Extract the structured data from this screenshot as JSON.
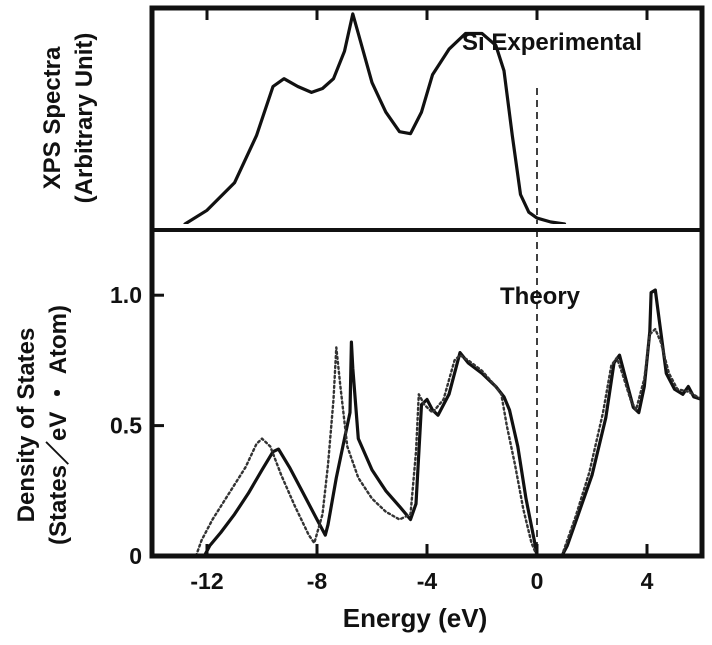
{
  "chart_data": [
    {
      "type": "line",
      "panel": "top",
      "ylabel_lines": [
        "XPS Spectra",
        "(Arbitrary Unit)"
      ],
      "annotation": "Si Experimental",
      "xlim": [
        -14,
        6
      ],
      "ylim": [
        0,
        1.1
      ],
      "y_ticks_shown": false,
      "reference_line": {
        "x": 0,
        "style": "dashed"
      },
      "series": [
        {
          "style": "solid",
          "points": [
            [
              -12.8,
              0.0
            ],
            [
              -12.0,
              0.07
            ],
            [
              -11.0,
              0.21
            ],
            [
              -10.2,
              0.45
            ],
            [
              -9.6,
              0.7
            ],
            [
              -9.2,
              0.74
            ],
            [
              -8.7,
              0.7
            ],
            [
              -8.2,
              0.67
            ],
            [
              -7.8,
              0.69
            ],
            [
              -7.4,
              0.74
            ],
            [
              -7.0,
              0.88
            ],
            [
              -6.7,
              1.07
            ],
            [
              -6.5,
              0.97
            ],
            [
              -6.0,
              0.72
            ],
            [
              -5.5,
              0.57
            ],
            [
              -5.0,
              0.47
            ],
            [
              -4.6,
              0.46
            ],
            [
              -4.2,
              0.57
            ],
            [
              -3.8,
              0.76
            ],
            [
              -3.2,
              0.89
            ],
            [
              -2.6,
              0.97
            ],
            [
              -2.0,
              0.97
            ],
            [
              -1.5,
              0.91
            ],
            [
              -1.2,
              0.78
            ],
            [
              -0.9,
              0.45
            ],
            [
              -0.6,
              0.15
            ],
            [
              -0.3,
              0.06
            ],
            [
              0.0,
              0.03
            ],
            [
              0.5,
              0.01
            ],
            [
              1.0,
              0.0
            ]
          ]
        }
      ]
    },
    {
      "type": "line",
      "panel": "bottom",
      "xlabel": "Energy (eV)",
      "ylabel_lines": [
        "Density of States",
        "(States／eV ・ Atom)"
      ],
      "annotation": "Theory",
      "xlim": [
        -14,
        6
      ],
      "ylim": [
        0,
        1.25
      ],
      "x_ticks": [
        -12,
        -8,
        -4,
        0,
        4
      ],
      "x_tick_labels": [
        "-12",
        "-8",
        "-4",
        "0",
        "4"
      ],
      "y_ticks": [
        0,
        0.5,
        1.0
      ],
      "y_tick_labels": [
        "0",
        "0.5",
        "1.0"
      ],
      "reference_line": {
        "x": 0,
        "style": "dashed"
      },
      "series": [
        {
          "style": "solid",
          "points": [
            [
              -12.1,
              0.0
            ],
            [
              -11.9,
              0.04
            ],
            [
              -11.5,
              0.09
            ],
            [
              -11.0,
              0.16
            ],
            [
              -10.5,
              0.24
            ],
            [
              -10.0,
              0.33
            ],
            [
              -9.6,
              0.4
            ],
            [
              -9.4,
              0.41
            ],
            [
              -9.0,
              0.34
            ],
            [
              -8.5,
              0.24
            ],
            [
              -8.0,
              0.14
            ],
            [
              -7.7,
              0.08
            ],
            [
              -7.6,
              0.12
            ],
            [
              -7.3,
              0.3
            ],
            [
              -7.0,
              0.45
            ],
            [
              -6.8,
              0.55
            ],
            [
              -6.75,
              0.82
            ],
            [
              -6.7,
              0.72
            ],
            [
              -6.5,
              0.45
            ],
            [
              -6.0,
              0.33
            ],
            [
              -5.5,
              0.25
            ],
            [
              -5.0,
              0.19
            ],
            [
              -4.6,
              0.14
            ],
            [
              -4.4,
              0.2
            ],
            [
              -4.2,
              0.58
            ],
            [
              -4.0,
              0.6
            ],
            [
              -3.8,
              0.56
            ],
            [
              -3.6,
              0.54
            ],
            [
              -3.2,
              0.62
            ],
            [
              -2.8,
              0.78
            ],
            [
              -2.5,
              0.74
            ],
            [
              -2.0,
              0.7
            ],
            [
              -1.5,
              0.65
            ],
            [
              -1.2,
              0.61
            ],
            [
              -1.0,
              0.56
            ],
            [
              -0.7,
              0.42
            ],
            [
              -0.4,
              0.22
            ],
            [
              -0.1,
              0.06
            ],
            [
              0.0,
              0.0
            ]
          ]
        },
        {
          "style": "dotted",
          "points": [
            [
              -12.4,
              0.0
            ],
            [
              -12.2,
              0.06
            ],
            [
              -11.8,
              0.14
            ],
            [
              -11.2,
              0.24
            ],
            [
              -10.6,
              0.34
            ],
            [
              -10.2,
              0.43
            ],
            [
              -10.0,
              0.45
            ],
            [
              -9.7,
              0.42
            ],
            [
              -9.3,
              0.31
            ],
            [
              -8.8,
              0.19
            ],
            [
              -8.3,
              0.08
            ],
            [
              -8.1,
              0.05
            ],
            [
              -7.8,
              0.16
            ],
            [
              -7.6,
              0.35
            ],
            [
              -7.4,
              0.6
            ],
            [
              -7.3,
              0.8
            ],
            [
              -7.15,
              0.65
            ],
            [
              -6.9,
              0.42
            ],
            [
              -6.5,
              0.3
            ],
            [
              -6.0,
              0.22
            ],
            [
              -5.5,
              0.17
            ],
            [
              -5.0,
              0.14
            ],
            [
              -4.6,
              0.16
            ],
            [
              -4.4,
              0.4
            ],
            [
              -4.3,
              0.62
            ],
            [
              -4.1,
              0.58
            ],
            [
              -3.8,
              0.55
            ],
            [
              -3.4,
              0.6
            ],
            [
              -3.0,
              0.75
            ],
            [
              -2.8,
              0.77
            ],
            [
              -2.5,
              0.75
            ],
            [
              -2.0,
              0.71
            ],
            [
              -1.5,
              0.65
            ],
            [
              -1.3,
              0.62
            ],
            [
              -1.1,
              0.5
            ],
            [
              -0.8,
              0.35
            ],
            [
              -0.5,
              0.18
            ],
            [
              -0.2,
              0.05
            ],
            [
              0.0,
              0.0
            ]
          ]
        },
        {
          "style": "solid",
          "points": [
            [
              0.9,
              0.0
            ],
            [
              1.1,
              0.04
            ],
            [
              1.5,
              0.16
            ],
            [
              2.0,
              0.31
            ],
            [
              2.5,
              0.53
            ],
            [
              2.8,
              0.74
            ],
            [
              3.0,
              0.77
            ],
            [
              3.2,
              0.69
            ],
            [
              3.5,
              0.57
            ],
            [
              3.7,
              0.55
            ],
            [
              3.9,
              0.65
            ],
            [
              4.1,
              0.86
            ],
            [
              4.15,
              1.01
            ],
            [
              4.3,
              1.02
            ],
            [
              4.45,
              0.9
            ],
            [
              4.7,
              0.7
            ],
            [
              5.0,
              0.64
            ],
            [
              5.3,
              0.62
            ],
            [
              5.5,
              0.65
            ],
            [
              5.7,
              0.61
            ],
            [
              6.0,
              0.6
            ]
          ]
        },
        {
          "style": "dotted",
          "points": [
            [
              0.9,
              0.0
            ],
            [
              1.0,
              0.03
            ],
            [
              1.4,
              0.15
            ],
            [
              1.9,
              0.32
            ],
            [
              2.4,
              0.55
            ],
            [
              2.7,
              0.73
            ],
            [
              2.9,
              0.76
            ],
            [
              3.1,
              0.7
            ],
            [
              3.4,
              0.6
            ],
            [
              3.6,
              0.56
            ],
            [
              3.9,
              0.68
            ],
            [
              4.1,
              0.85
            ],
            [
              4.3,
              0.87
            ],
            [
              4.5,
              0.82
            ],
            [
              4.8,
              0.7
            ],
            [
              5.1,
              0.64
            ],
            [
              5.5,
              0.63
            ],
            [
              6.0,
              0.6
            ]
          ]
        }
      ]
    }
  ]
}
